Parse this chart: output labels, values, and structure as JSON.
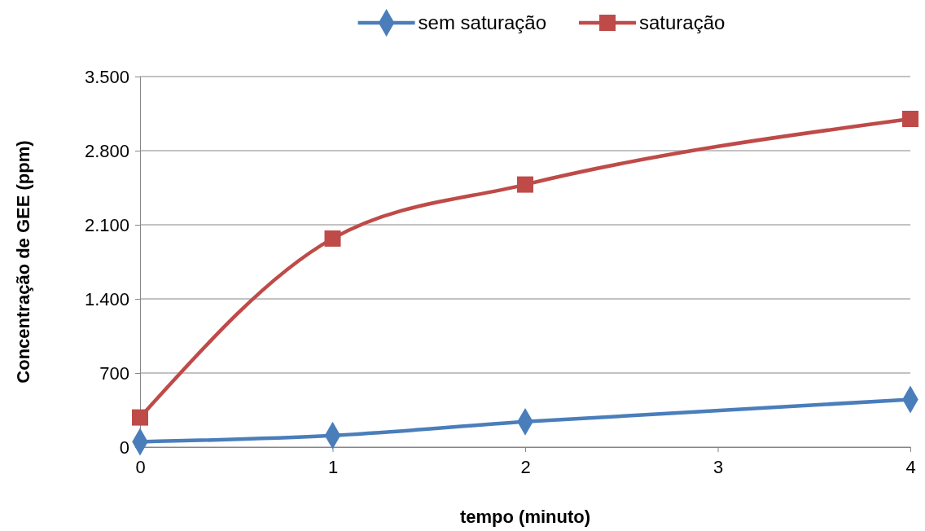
{
  "chart_data": {
    "type": "line",
    "xlabel": "tempo (minuto)",
    "ylabel": "Concentração de GEE  (ppm)",
    "x": [
      0,
      1,
      2,
      4
    ],
    "series": [
      {
        "name": "sem saturação",
        "color": "#4a7ebb",
        "values": [
          50,
          110,
          240,
          450
        ],
        "marker": "diamond"
      },
      {
        "name": "saturação",
        "color": "#be4b48",
        "values": [
          280,
          1970,
          2480,
          3100
        ],
        "marker": "square"
      }
    ],
    "xlim": [
      0,
      4
    ],
    "xticks": [
      0,
      1,
      2,
      3,
      4
    ],
    "ylim": [
      0,
      3500
    ],
    "yticks": [
      0,
      700,
      {
        "value": 1400,
        "label": "1.400"
      },
      {
        "value": 2100,
        "label": "2.100"
      },
      {
        "value": 2800,
        "label": "2.800"
      },
      {
        "value": 3500,
        "label": "3.500"
      }
    ],
    "grid": "y",
    "legend": "top",
    "line_style": "solid"
  }
}
